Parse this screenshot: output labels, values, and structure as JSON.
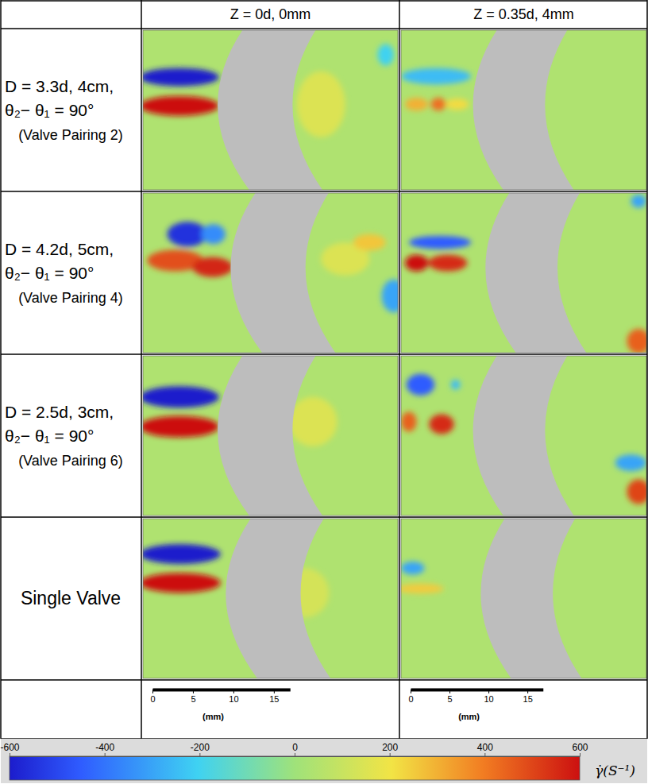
{
  "chart_data": {
    "type": "contour_panels",
    "columns": [
      "Z = 0d, 0mm",
      "Z = 0.35d, 4mm"
    ],
    "xlim": [
      0,
      31.5
    ],
    "ylim": [
      0,
      19.4
    ],
    "tick_labels": false,
    "background": 40,
    "rows": [
      {
        "label": [
          "D = 3.3d, 4cm,",
          "θ₂− θ₁ = 90°",
          "(Valve Pairing 2)"
        ],
        "panels": [
          [
            {
              "x": 4.5,
              "y": 5.7,
              "rx": 4.9,
              "ry": 1.1,
              "value": -600
            },
            {
              "x": 4.5,
              "y": 9.2,
              "rx": 4.9,
              "ry": 1.2,
              "value": 600
            },
            {
              "x": 22,
              "y": 9,
              "rx": 3,
              "ry": 4,
              "value": 150
            },
            {
              "x": 30,
              "y": 3,
              "rx": 1,
              "ry": 1.3,
              "value": -200
            }
          ],
          [
            {
              "x": 4.5,
              "y": 5.6,
              "rx": 4.5,
              "ry": 1,
              "value": -250
            },
            {
              "x": 2,
              "y": 9,
              "rx": 1.5,
              "ry": 0.8,
              "value": 300
            },
            {
              "x": 4.8,
              "y": 9,
              "rx": 1,
              "ry": 0.8,
              "value": 420
            },
            {
              "x": 7.2,
              "y": 9,
              "rx": 1.5,
              "ry": 0.7,
              "value": 220
            }
          ]
        ]
      },
      {
        "label": [
          "D = 4.2d, 5cm,",
          "θ₂− θ₁ = 90°",
          "(Valve Pairing 4)"
        ],
        "panels": [
          [
            {
              "x": 5.5,
              "y": 5,
              "rx": 2.5,
              "ry": 1.5,
              "value": -550
            },
            {
              "x": 8.7,
              "y": 5,
              "rx": 1.5,
              "ry": 1.2,
              "value": -350
            },
            {
              "x": 4,
              "y": 8.2,
              "rx": 3.5,
              "ry": 1.3,
              "value": 480
            },
            {
              "x": 8.6,
              "y": 9,
              "rx": 2.5,
              "ry": 1.2,
              "value": 560
            },
            {
              "x": 25,
              "y": 8,
              "rx": 3,
              "ry": 2,
              "value": 150
            },
            {
              "x": 28,
              "y": 6,
              "rx": 2,
              "ry": 1,
              "value": 260
            },
            {
              "x": 31,
              "y": 12.5,
              "rx": 1.5,
              "ry": 2,
              "value": -300
            }
          ],
          [
            {
              "x": 5,
              "y": 6,
              "rx": 4,
              "ry": 0.8,
              "value": -450
            },
            {
              "x": 2,
              "y": 8.5,
              "rx": 1.5,
              "ry": 1,
              "value": 600
            },
            {
              "x": 6,
              "y": 8.5,
              "rx": 2.5,
              "ry": 1,
              "value": 550
            },
            {
              "x": 30.5,
              "y": 1,
              "rx": 1,
              "ry": 0.8,
              "value": -300
            },
            {
              "x": 30.5,
              "y": 18,
              "rx": 1.5,
              "ry": 1.5,
              "value": 450
            }
          ]
        ]
      },
      {
        "label": [
          "D = 2.5d, 3cm,",
          "θ₂− θ₁ = 90°",
          "(Valve Pairing 6)"
        ],
        "panels": [
          [
            {
              "x": 4.5,
              "y": 5,
              "rx": 4.9,
              "ry": 1.3,
              "value": -600
            },
            {
              "x": 4.5,
              "y": 8.6,
              "rx": 4.9,
              "ry": 1.3,
              "value": 600
            },
            {
              "x": 21,
              "y": 8,
              "rx": 3,
              "ry": 3,
              "value": 150
            }
          ],
          [
            {
              "x": 2.5,
              "y": 3.5,
              "rx": 1.8,
              "ry": 1.3,
              "value": -450
            },
            {
              "x": 7,
              "y": 3.5,
              "rx": 0.6,
              "ry": 0.6,
              "value": -250
            },
            {
              "x": 1,
              "y": 8,
              "rx": 1,
              "ry": 1.2,
              "value": 450
            },
            {
              "x": 5.2,
              "y": 8.3,
              "rx": 1.6,
              "ry": 1.2,
              "value": 550
            },
            {
              "x": 29.5,
              "y": 13,
              "rx": 2,
              "ry": 1,
              "value": -300
            },
            {
              "x": 30.5,
              "y": 16.5,
              "rx": 1.5,
              "ry": 1.5,
              "value": 500
            }
          ]
        ]
      },
      {
        "label": [
          "Single Valve"
        ],
        "panels": [
          [
            {
              "x": 4.6,
              "y": 4.3,
              "rx": 5,
              "ry": 1.2,
              "value": -600
            },
            {
              "x": 4.6,
              "y": 7.8,
              "rx": 5,
              "ry": 1.2,
              "value": 600
            },
            {
              "x": 20,
              "y": 9,
              "rx": 3,
              "ry": 3,
              "value": 130
            }
          ],
          [
            {
              "x": 1.5,
              "y": 6,
              "rx": 1.5,
              "ry": 0.8,
              "value": -300
            },
            {
              "x": 2.5,
              "y": 8.5,
              "rx": 3,
              "ry": 0.6,
              "value": 250
            }
          ]
        ]
      }
    ],
    "scale_bar": {
      "xlim": [
        0,
        17
      ],
      "xticks": [
        0,
        5,
        10,
        15
      ],
      "label": "(mm)"
    },
    "colorbar": {
      "range": [
        -600,
        600
      ],
      "ticks": [
        -600,
        -400,
        -200,
        0,
        200,
        400,
        600
      ],
      "label": "γ̇(S⁻¹)"
    }
  }
}
